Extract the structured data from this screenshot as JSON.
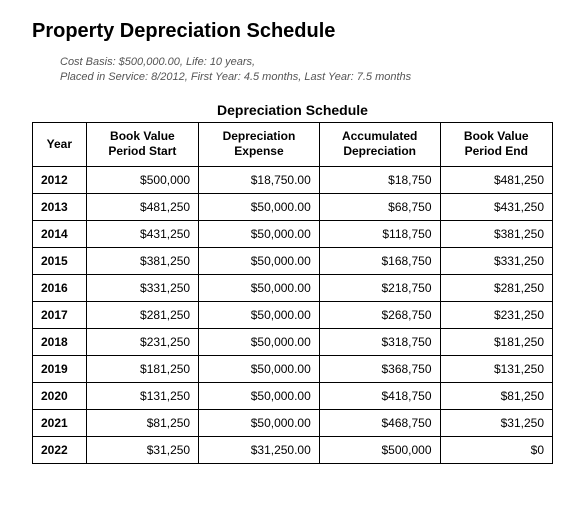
{
  "title": "Property Depreciation Schedule",
  "subtitle_line1": "Cost Basis: $500,000.00, Life: 10 years,",
  "subtitle_line2": "Placed in Service: 8/2012, First Year: 4.5 months, Last Year: 7.5 months",
  "table_title": "Depreciation Schedule",
  "columns": {
    "year": "Year",
    "bvs1": "Book Value",
    "bvs2": "Period Start",
    "de1": "Depreciation",
    "de2": "Expense",
    "ad1": "Accumulated",
    "ad2": "Depreciation",
    "bve1": "Book Value",
    "bve2": "Period End"
  },
  "rows": [
    {
      "year": "2012",
      "bvs": "$500,000",
      "de": "$18,750.00",
      "ad": "$18,750",
      "bve": "$481,250"
    },
    {
      "year": "2013",
      "bvs": "$481,250",
      "de": "$50,000.00",
      "ad": "$68,750",
      "bve": "$431,250"
    },
    {
      "year": "2014",
      "bvs": "$431,250",
      "de": "$50,000.00",
      "ad": "$118,750",
      "bve": "$381,250"
    },
    {
      "year": "2015",
      "bvs": "$381,250",
      "de": "$50,000.00",
      "ad": "$168,750",
      "bve": "$331,250"
    },
    {
      "year": "2016",
      "bvs": "$331,250",
      "de": "$50,000.00",
      "ad": "$218,750",
      "bve": "$281,250"
    },
    {
      "year": "2017",
      "bvs": "$281,250",
      "de": "$50,000.00",
      "ad": "$268,750",
      "bve": "$231,250"
    },
    {
      "year": "2018",
      "bvs": "$231,250",
      "de": "$50,000.00",
      "ad": "$318,750",
      "bve": "$181,250"
    },
    {
      "year": "2019",
      "bvs": "$181,250",
      "de": "$50,000.00",
      "ad": "$368,750",
      "bve": "$131,250"
    },
    {
      "year": "2020",
      "bvs": "$131,250",
      "de": "$50,000.00",
      "ad": "$418,750",
      "bve": "$81,250"
    },
    {
      "year": "2021",
      "bvs": "$81,250",
      "de": "$50,000.00",
      "ad": "$468,750",
      "bve": "$31,250"
    },
    {
      "year": "2022",
      "bvs": "$31,250",
      "de": "$31,250.00",
      "ad": "$500,000",
      "bve": "$0"
    }
  ],
  "styling": {
    "background_color": "#ffffff",
    "text_color": "#000000",
    "subtitle_color": "#555555",
    "border_color": "#000000",
    "title_fontsize": 20,
    "subtitle_fontsize": 11,
    "table_title_fontsize": 14,
    "cell_fontsize": 12,
    "font_family": "Verdana, Arial, sans-serif"
  }
}
